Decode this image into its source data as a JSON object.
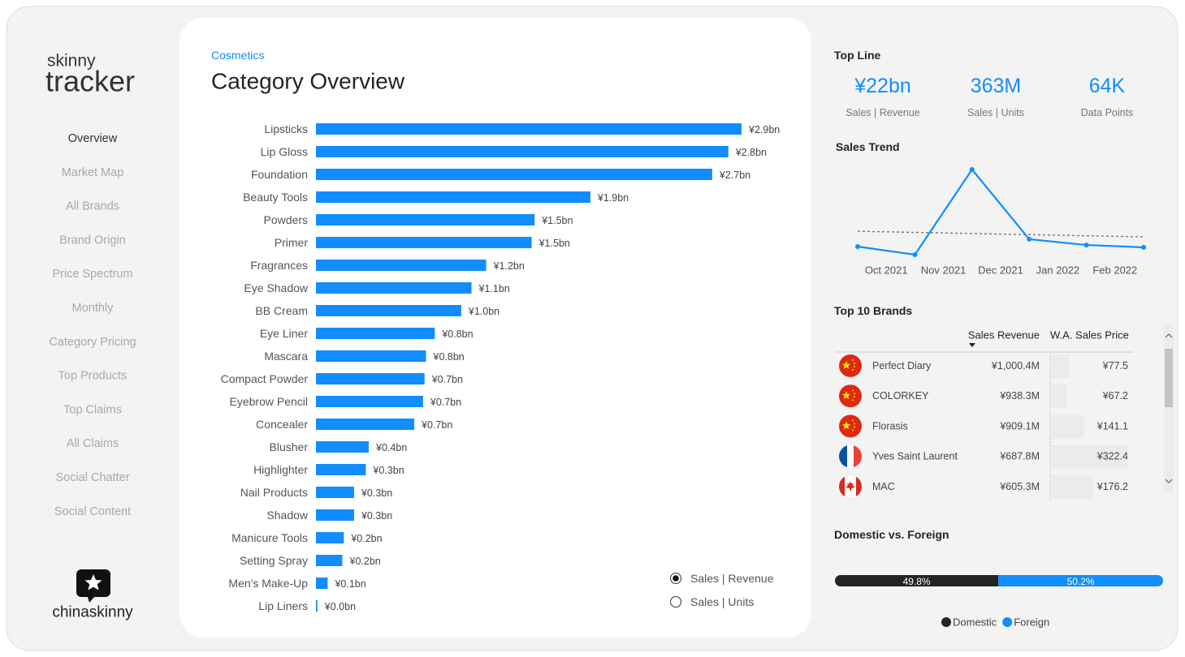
{
  "sidebar": {
    "logo_top": "skinny",
    "logo_bottom": "tracker",
    "nav": [
      "Overview",
      "Market Map",
      "All Brands",
      "Brand Origin",
      "Price Spectrum",
      "Monthly",
      "Category Pricing",
      "Top Products",
      "Top Claims",
      "All Claims",
      "Social Chatter",
      "Social Content"
    ],
    "active": 0,
    "footer": "chinaskinny"
  },
  "main": {
    "breadcrumb": "Cosmetics",
    "title": "Category Overview",
    "chart_data": {
      "type": "bar",
      "orientation": "horizontal",
      "color": "#118dff",
      "categories": [
        "Lipsticks",
        "Lip Gloss",
        "Foundation",
        "Beauty Tools",
        "Powders",
        "Primer",
        "Fragrances",
        "Eye Shadow",
        "BB Cream",
        "Eye Liner",
        "Mascara",
        "Compact Powder",
        "Eyebrow Pencil",
        "Concealer",
        "Blusher",
        "Highlighter",
        "Nail Products",
        "Shadow",
        "Manicure Tools",
        "Setting Spray",
        "Men's Make-Up",
        "Lip Liners"
      ],
      "values": [
        2.9,
        2.81,
        2.7,
        1.87,
        1.49,
        1.47,
        1.16,
        1.06,
        0.99,
        0.81,
        0.75,
        0.74,
        0.73,
        0.67,
        0.36,
        0.34,
        0.26,
        0.26,
        0.19,
        0.18,
        0.08,
        0.01
      ],
      "value_labels": [
        "¥2.9bn",
        "¥2.8bn",
        "¥2.7bn",
        "¥1.9bn",
        "¥1.5bn",
        "¥1.5bn",
        "¥1.2bn",
        "¥1.1bn",
        "¥1.0bn",
        "¥0.8bn",
        "¥0.8bn",
        "¥0.7bn",
        "¥0.7bn",
        "¥0.7bn",
        "¥0.4bn",
        "¥0.3bn",
        "¥0.3bn",
        "¥0.3bn",
        "¥0.2bn",
        "¥0.2bn",
        "¥0.1bn",
        "¥0.0bn"
      ]
    },
    "toggle": {
      "options": [
        "Sales | Revenue",
        "Sales | Units"
      ],
      "selected": 0
    }
  },
  "top_line": {
    "title": "Top Line",
    "kpis": [
      {
        "value": "¥22bn",
        "label": "Sales | Revenue"
      },
      {
        "value": "363M",
        "label": "Sales | Units"
      },
      {
        "value": "64K",
        "label": "Data Points"
      }
    ]
  },
  "sales_trend": {
    "title": "Sales Trend",
    "chart_data": {
      "type": "line",
      "color": "#118dff",
      "categories": [
        "Oct 2021",
        "Nov 2021",
        "Dec 2021",
        "Jan 2022",
        "Feb 2022",
        null
      ],
      "values": [
        3.02,
        2.6,
        7.0,
        3.4,
        3.1,
        2.98
      ],
      "trend": [
        3.81,
        3.52
      ]
    }
  },
  "top_brands": {
    "title": "Top 10 Brands",
    "columns": [
      "Sales Revenue",
      "W.A. Sales Price"
    ],
    "rows": [
      {
        "name": "Perfect Diary",
        "revenue": "¥1,000.4M",
        "price": 77.5,
        "price_label": "¥77.5"
      },
      {
        "name": "COLORKEY",
        "revenue": "¥938.3M",
        "price": 67.2,
        "price_label": "¥67.2"
      },
      {
        "name": "Florasis",
        "revenue": "¥909.1M",
        "price": 141.1,
        "price_label": "¥141.1"
      },
      {
        "name": "Yves Saint Laurent",
        "revenue": "¥687.8M",
        "price": 322.4,
        "price_label": "¥322.4"
      },
      {
        "name": "MAC",
        "revenue": "¥605.3M",
        "price": 176.2,
        "price_label": "¥176.2"
      }
    ]
  },
  "domestic_foreign": {
    "title": "Domestic vs. Foreign",
    "chart_data": {
      "type": "stacked-bar",
      "series": [
        {
          "name": "Domestic",
          "color": "#252423",
          "values": [
            49.8
          ],
          "value_labels": [
            "49.8%"
          ]
        },
        {
          "name": "Foreign",
          "color": "#118dff",
          "values": [
            50.2
          ],
          "value_labels": [
            "50.2%"
          ]
        }
      ]
    }
  }
}
